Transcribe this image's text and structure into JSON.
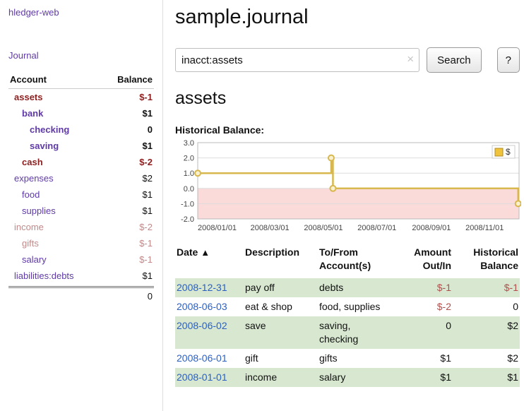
{
  "sidebar": {
    "app_title": "hledger-web",
    "journal_link": "Journal",
    "accounts_table": {
      "col_account": "Account",
      "col_balance": "Balance",
      "rows": [
        {
          "name": "assets",
          "balance": "$-1",
          "depth": 1,
          "name_color": "red",
          "balance_color": "red",
          "bold": true
        },
        {
          "name": "bank",
          "balance": "$1",
          "depth": 2,
          "name_color": "purple",
          "balance_color": "black",
          "bold": true
        },
        {
          "name": "checking",
          "balance": "0",
          "depth": 3,
          "name_color": "purple",
          "balance_color": "black",
          "bold": true
        },
        {
          "name": "saving",
          "balance": "$1",
          "depth": 3,
          "name_color": "purple",
          "balance_color": "black",
          "bold": true
        },
        {
          "name": "cash",
          "balance": "$-2",
          "depth": 2,
          "name_color": "red",
          "balance_color": "red",
          "bold": true
        },
        {
          "name": "expenses",
          "balance": "$2",
          "depth": 1,
          "name_color": "purple",
          "balance_color": "black",
          "bold": false
        },
        {
          "name": "food",
          "balance": "$1",
          "depth": 2,
          "name_color": "purple",
          "balance_color": "black",
          "bold": false
        },
        {
          "name": "supplies",
          "balance": "$1",
          "depth": 2,
          "name_color": "purple",
          "balance_color": "black",
          "bold": false
        },
        {
          "name": "income",
          "balance": "$-2",
          "depth": 1,
          "name_color": "rose",
          "balance_color": "rose",
          "bold": false
        },
        {
          "name": "gifts",
          "balance": "$-1",
          "depth": 2,
          "name_color": "rose",
          "balance_color": "rose",
          "bold": false
        },
        {
          "name": "salary",
          "balance": "$-1",
          "depth": 2,
          "name_color": "purple",
          "balance_color": "rose",
          "bold": false
        },
        {
          "name": "liabilities:debts",
          "balance": "$1",
          "depth": 1,
          "name_color": "purple",
          "balance_color": "black",
          "bold": false
        }
      ],
      "total": "0"
    }
  },
  "main": {
    "title": "sample.journal",
    "search": {
      "value": "inacct:assets",
      "clear_icon": "×",
      "button_label": "Search",
      "help_label": "?"
    },
    "account_heading": "assets",
    "chart_label": "Historical Balance:"
  },
  "chart_data": {
    "type": "line",
    "title": "Historical Balance",
    "x_range": [
      "2008-01-01",
      "2008-12-31"
    ],
    "x_tick_labels": [
      "2008/01/01",
      "2008/03/01",
      "2008/05/01",
      "2008/07/01",
      "2008/09/01",
      "2008/11/01"
    ],
    "y_tick_labels": [
      "3.0",
      "2.0",
      "1.0",
      "0.0",
      "-1.0",
      "-2.0"
    ],
    "ylim": [
      -2.0,
      3.0
    ],
    "grid": true,
    "legend_position": "top-right",
    "legend": [
      {
        "label": "$",
        "color": "#f0c33c"
      }
    ],
    "negative_fill": "#fbdada",
    "series": [
      {
        "name": "$",
        "step": true,
        "color": "#d8b84e",
        "points": [
          {
            "x": "2008-01-01",
            "y": 1
          },
          {
            "x": "2008-06-01",
            "y": 2
          },
          {
            "x": "2008-06-03",
            "y": 0
          },
          {
            "x": "2008-12-31",
            "y": -1
          }
        ]
      }
    ]
  },
  "register": {
    "headers": [
      {
        "line1": "Date",
        "line2": "",
        "sort_indicator": "▲",
        "align": "left"
      },
      {
        "line1": "Description",
        "line2": "",
        "align": "left"
      },
      {
        "line1": "To/From",
        "line2": "Account(s)",
        "align": "left"
      },
      {
        "line1": "Amount",
        "line2": "Out/In",
        "align": "right"
      },
      {
        "line1": "Historical",
        "line2": "Balance",
        "align": "right"
      }
    ],
    "rows": [
      {
        "date": "2008-12-31",
        "description": "pay off",
        "accounts": "debts",
        "amount": "$-1",
        "balance": "$-1"
      },
      {
        "date": "2008-06-03",
        "description": "eat & shop",
        "accounts": "food, supplies",
        "amount": "$-2",
        "balance": "0"
      },
      {
        "date": "2008-06-02",
        "description": "save",
        "accounts": "saving, checking",
        "amount": "0",
        "balance": "$2"
      },
      {
        "date": "2008-06-01",
        "description": "gift",
        "accounts": "gifts",
        "amount": "$1",
        "balance": "$2"
      },
      {
        "date": "2008-01-01",
        "description": "income",
        "accounts": "salary",
        "amount": "$1",
        "balance": "$1"
      }
    ]
  }
}
